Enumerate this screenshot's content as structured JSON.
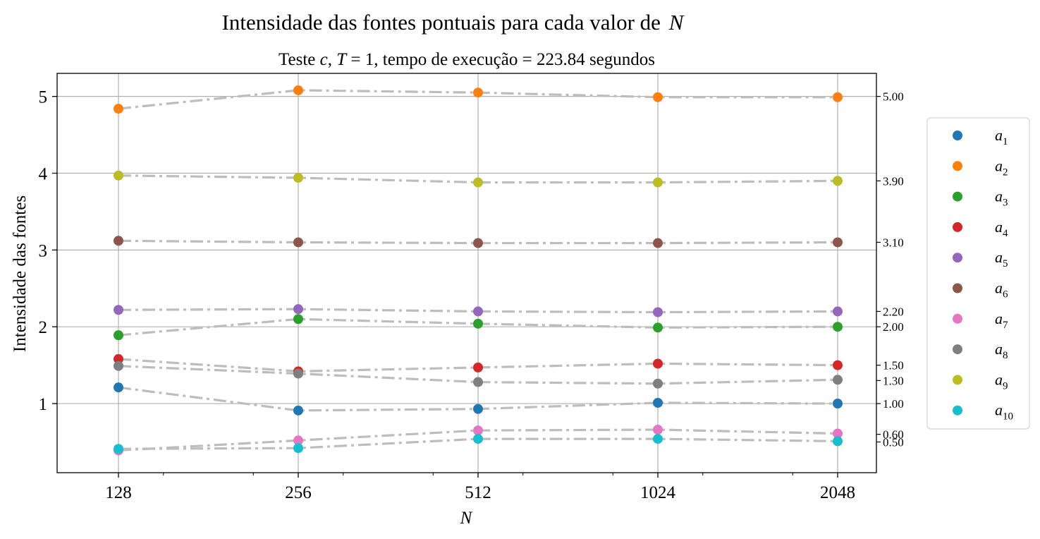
{
  "chart_data": {
    "type": "scatter",
    "title": "Intensidade das fontes pontuais para cada valor de N",
    "title_italic_tail": "N",
    "subtitle": {
      "prefix": "Teste ",
      "c": "c",
      "sep": ", ",
      "T": "T",
      "eq": " = 1, tempo de execução = ",
      "runtime": "223.84",
      "suffix": " segundos"
    },
    "xlabel": "N",
    "ylabel": "Intensidade das fontes",
    "x": [
      128,
      256,
      512,
      1024,
      2048
    ],
    "x_scale": "log2",
    "x_ticks": [
      "128",
      "256",
      "512",
      "1024",
      "2048"
    ],
    "y_ticks": [
      "1",
      "2",
      "3",
      "4",
      "5"
    ],
    "ylim": [
      0.1,
      5.3
    ],
    "grid": true,
    "right_axis_ticks": [
      {
        "value": 5.0,
        "label": "5.00"
      },
      {
        "value": 3.9,
        "label": "3.90"
      },
      {
        "value": 3.1,
        "label": "3.10"
      },
      {
        "value": 2.2,
        "label": "2.20"
      },
      {
        "value": 2.0,
        "label": "2.00"
      },
      {
        "value": 1.5,
        "label": "1.50"
      },
      {
        "value": 1.3,
        "label": "1.30"
      },
      {
        "value": 1.0,
        "label": "1.00"
      },
      {
        "value": 0.6,
        "label": "0.60"
      },
      {
        "value": 0.5,
        "label": "0.50"
      }
    ],
    "legend_position": "right-outside",
    "series": [
      {
        "name": "a",
        "sub": "1",
        "color": "#1f77b4",
        "values": [
          1.21,
          0.91,
          0.93,
          1.01,
          1.0
        ]
      },
      {
        "name": "a",
        "sub": "2",
        "color": "#ff7f0e",
        "values": [
          4.84,
          5.08,
          5.05,
          4.99,
          4.99
        ]
      },
      {
        "name": "a",
        "sub": "3",
        "color": "#2ca02c",
        "values": [
          1.89,
          2.1,
          2.04,
          1.99,
          2.0
        ]
      },
      {
        "name": "a",
        "sub": "4",
        "color": "#d62728",
        "values": [
          1.58,
          1.42,
          1.47,
          1.52,
          1.5
        ]
      },
      {
        "name": "a",
        "sub": "5",
        "color": "#9467bd",
        "values": [
          2.22,
          2.23,
          2.2,
          2.19,
          2.2
        ]
      },
      {
        "name": "a",
        "sub": "6",
        "color": "#8c564b",
        "values": [
          3.12,
          3.1,
          3.09,
          3.09,
          3.1
        ]
      },
      {
        "name": "a",
        "sub": "7",
        "color": "#e377c2",
        "values": [
          0.39,
          0.52,
          0.65,
          0.66,
          0.61
        ]
      },
      {
        "name": "a",
        "sub": "8",
        "color": "#7f7f7f",
        "values": [
          1.49,
          1.39,
          1.28,
          1.26,
          1.31
        ]
      },
      {
        "name": "a",
        "sub": "9",
        "color": "#bcbd22",
        "values": [
          3.97,
          3.94,
          3.88,
          3.88,
          3.9
        ]
      },
      {
        "name": "a",
        "sub": "10",
        "color": "#17becf",
        "values": [
          0.41,
          0.42,
          0.54,
          0.54,
          0.51
        ]
      }
    ]
  }
}
